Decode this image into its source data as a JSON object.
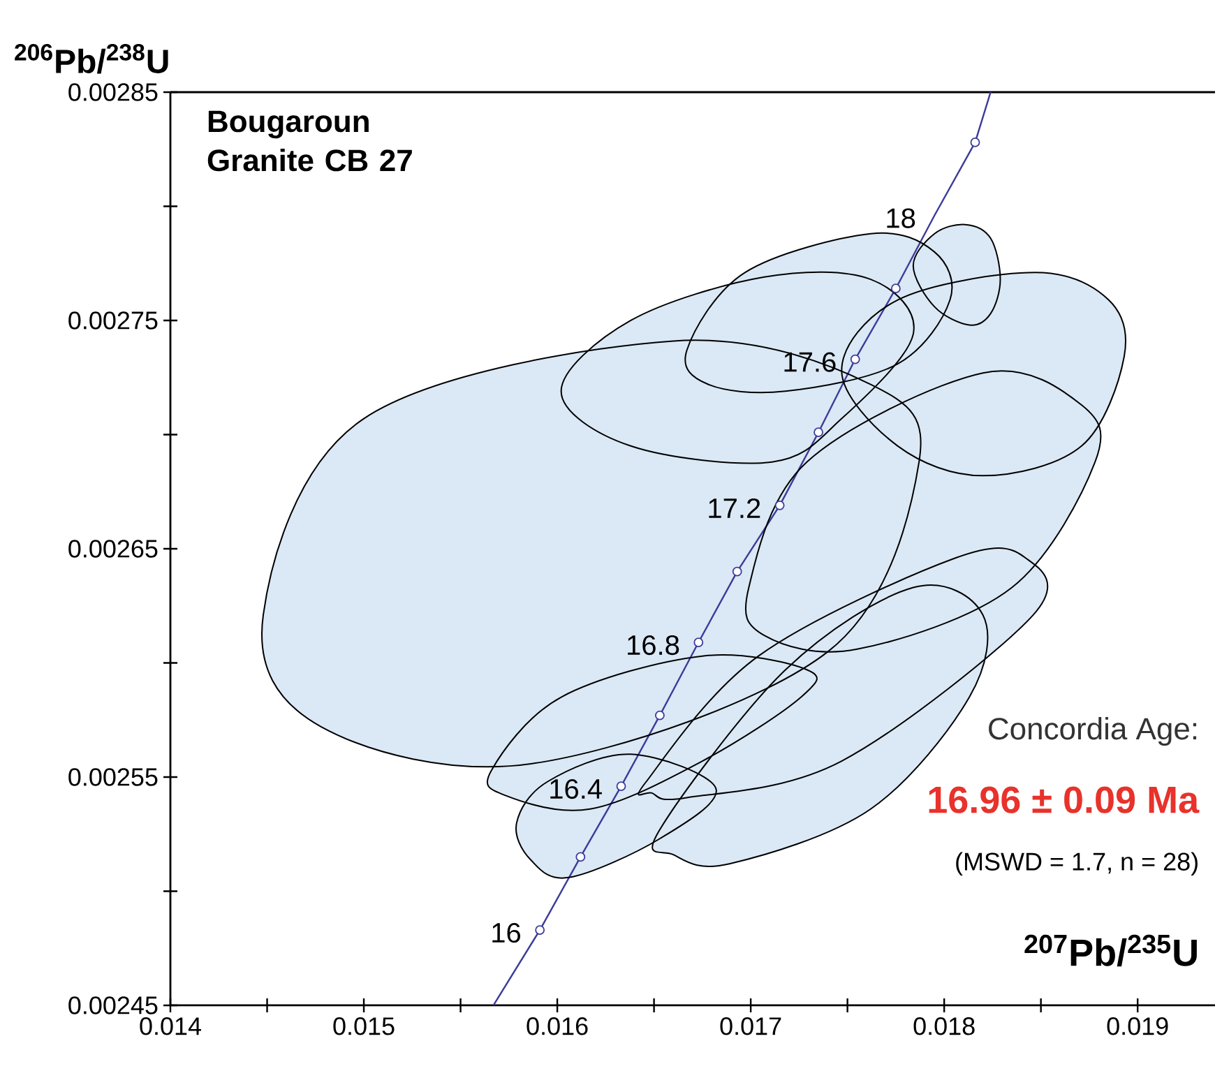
{
  "chart_data": {
    "type": "scatter",
    "title": "Bougaroun Granite CB 27",
    "xlabel": "$^{207}$Pb/$^{235}$U",
    "ylabel": "$^{206}$Pb/$^{238}$U",
    "xlim": [
      0.014,
      0.0194
    ],
    "ylim": [
      0.00245,
      0.00285
    ],
    "xticks": [
      0.014,
      {
        "value": 0.0145,
        "label": null
      },
      0.015,
      {
        "value": 0.0155,
        "label": null
      },
      0.016,
      {
        "value": 0.0165,
        "label": null
      },
      0.017,
      {
        "value": 0.0175,
        "label": null
      },
      0.018,
      {
        "value": 0.0185,
        "label": null
      },
      0.019
    ],
    "yticks": [
      0.00245,
      {
        "value": 0.0025,
        "label": null
      },
      0.00255,
      {
        "value": 0.0026,
        "label": null
      },
      0.00265,
      {
        "value": 0.0027,
        "label": null
      },
      0.00275,
      {
        "value": 0.0028,
        "label": null
      },
      0.00285
    ],
    "grid": false,
    "series": [
      {
        "type": "line",
        "color": "#3b3b9a",
        "x": [
          0.01567,
          0.01591,
          0.01612,
          0.01633,
          0.01653,
          0.01673,
          0.01693,
          0.01715,
          0.01735,
          0.01754,
          0.01775,
          0.01795,
          0.01816,
          0.01824
        ],
        "values": [
          0.00245,
          0.002483,
          0.002515,
          0.002546,
          0.002577,
          0.002609,
          0.00264,
          0.002669,
          0.002701,
          0.002733,
          0.002764,
          0.002796,
          0.002828,
          0.00285
        ]
      },
      {
        "type": "area",
        "color": "#dbe8f5",
        "x": [
          0.01602,
          0.01638,
          0.01707,
          0.01762,
          0.01784,
          0.01747,
          0.01711,
          0.01638
        ],
        "values": [
          0.002719,
          0.00275,
          0.002769,
          0.002768,
          0.002744,
          0.002707,
          0.002688,
          0.002695
        ]
      },
      {
        "type": "area",
        "color": "#dbe8f5",
        "x": [
          0.01784,
          0.01795,
          0.01811,
          0.01824,
          0.01829,
          0.01824,
          0.01813,
          0.01795
        ],
        "values": [
          0.002774,
          0.002788,
          0.002792,
          0.002786,
          0.002768,
          0.002753,
          0.002748,
          0.002756
        ]
      },
      {
        "type": "area",
        "color": "#dbe8f5",
        "x": [
          0.01667,
          0.01697,
          0.01762,
          0.01795,
          0.01803,
          0.01776,
          0.01718,
          0.01678
        ],
        "values": [
          0.002737,
          0.002771,
          0.002788,
          0.00278,
          0.002759,
          0.002731,
          0.002719,
          0.002722
        ]
      },
      {
        "type": "area",
        "color": "#dbe8f5",
        "x": [
          0.01747,
          0.01776,
          0.01847,
          0.01885,
          0.01893,
          0.01871,
          0.0182,
          0.01776
        ],
        "values": [
          0.002728,
          0.002759,
          0.002771,
          0.002759,
          0.002734,
          0.002695,
          0.002682,
          0.002695
        ]
      },
      {
        "type": "area",
        "color": "#dbe8f5",
        "x": [
          0.01653,
          0.01718,
          0.01784,
          0.0182,
          0.01813,
          0.01762,
          0.01689,
          0.0166
        ],
        "values": [
          0.002527,
          0.002597,
          0.002633,
          0.002621,
          0.002585,
          0.002536,
          0.002512,
          0.002516
        ]
      },
      {
        "type": "area",
        "color": "#dbe8f5",
        "x": [
          0.01646,
          0.01704,
          0.01806,
          0.01842,
          0.01846,
          0.01747,
          0.01667,
          0.01649
        ],
        "values": [
          0.002548,
          0.002603,
          0.002646,
          0.002646,
          0.002621,
          0.002557,
          0.002541,
          0.002543
        ]
      },
      {
        "type": "area",
        "color": "#dbe8f5",
        "x": [
          0.01566,
          0.01602,
          0.01675,
          0.01729,
          0.01726,
          0.01675,
          0.01617,
          0.01573
        ],
        "values": [
          0.002553,
          0.002585,
          0.002603,
          0.002597,
          0.002585,
          0.002557,
          0.002536,
          0.002542
        ]
      },
      {
        "type": "area",
        "color": "#dbe8f5",
        "x": [
          0.01579,
          0.01595,
          0.01638,
          0.01682,
          0.01653,
          0.01606,
          0.01586
        ],
        "values": [
          0.00253,
          0.002548,
          0.00256,
          0.002545,
          0.002523,
          0.002506,
          0.002514
        ]
      },
      {
        "type": "area",
        "color": "#dbe8f5",
        "x": [
          0.01448,
          0.015,
          0.0166,
          0.01762,
          0.01787,
          0.0174,
          0.01588,
          0.01478
        ],
        "values": [
          0.002621,
          0.002707,
          0.002741,
          0.002722,
          0.002688,
          0.002605,
          0.002556,
          0.002572
        ]
      },
      {
        "type": "area",
        "color": "#dbe8f5",
        "x": [
          0.01699,
          0.01729,
          0.0182,
          0.01871,
          0.01878,
          0.01835,
          0.01755,
          0.01707
        ],
        "values": [
          0.002633,
          0.002688,
          0.002727,
          0.002713,
          0.002688,
          0.002633,
          0.002606,
          0.002612
        ]
      },
      {
        "marker": "circle",
        "color": "#3b3b9a",
        "x": [
          0.01591,
          0.01612,
          0.01633,
          0.01653,
          0.01673,
          0.01693,
          0.01715,
          0.01735,
          0.01754,
          0.01775,
          0.01816
        ],
        "values": [
          0.002483,
          0.002515,
          0.002546,
          0.002577,
          0.002609,
          0.00264,
          0.002669,
          0.002701,
          0.002733,
          0.002764,
          0.002828
        ]
      }
    ],
    "annotations": [
      {
        "text": "16",
        "x": 0.01591,
        "y": 0.002483
      },
      {
        "text": "16.4",
        "x": 0.01633,
        "y": 0.002546
      },
      {
        "text": "16.8",
        "x": 0.01673,
        "y": 0.002609
      },
      {
        "text": "17.2",
        "x": 0.01715,
        "y": 0.002669
      },
      {
        "text": "17.6",
        "x": 0.01754,
        "y": 0.002733
      },
      {
        "text": "18",
        "x": 0.01795,
        "y": 0.002796
      },
      "Concordia Age:",
      "16.96 ± 0.09 Ma",
      "(MSWD = 1.7, n = 28)"
    ]
  }
}
